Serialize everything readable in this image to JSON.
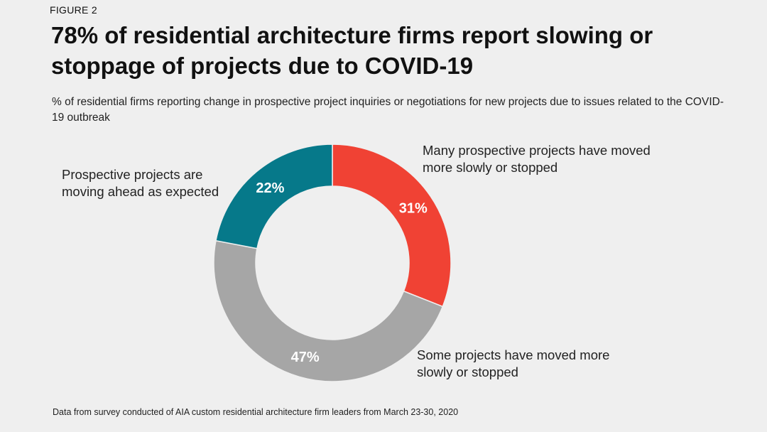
{
  "figure_label": "FIGURE 2",
  "footnote": "Data from survey conducted of AIA custom residential architecture firm leaders from March 23-30, 2020",
  "colors": {
    "background": "#efefef",
    "label_text": "#ffffff"
  },
  "chart_data": {
    "type": "pie",
    "donut": true,
    "title": "78% of residential architecture firms report slowing or stoppage of projects due to COVID-19",
    "subtitle": "% of residential firms reporting change in prospective project inquiries or negotiations for new projects due to issues related to the COVID-19 outbreak",
    "unit": "%",
    "slices": [
      {
        "label": "Many prospective projects have moved more slowly or stopped",
        "value": 31,
        "display": "31%",
        "color": "#f04234"
      },
      {
        "label": "Some projects have moved more slowly or stopped",
        "value": 47,
        "display": "47%",
        "color": "#a6a6a6"
      },
      {
        "label": "Prospective projects are moving ahead as expected",
        "value": 22,
        "display": "22%",
        "color": "#06798a"
      }
    ]
  }
}
